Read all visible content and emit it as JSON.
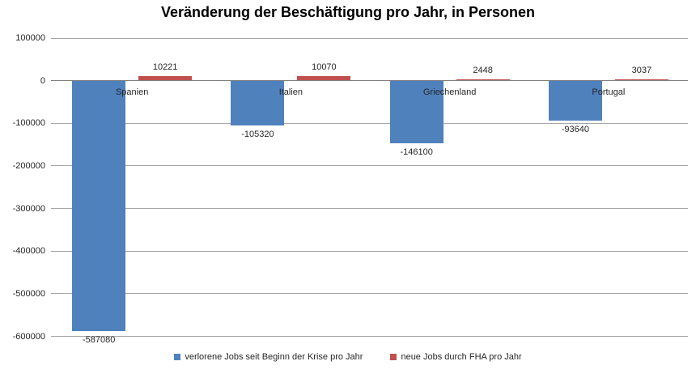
{
  "title": "Veränderung der Beschäftigung pro Jahr, in Personen",
  "colors": {
    "lost_jobs_blue": "#4F81BD",
    "new_jobs_red": "#C0504D",
    "gridline": "#A6A6A6",
    "axis_line": "#808080",
    "label_text": "#262626"
  },
  "legend": [
    {
      "label": "verlorene Jobs seit Beginn der Krise pro Jahr",
      "color": "#4F81BD"
    },
    {
      "label": "neue Jobs durch FHA pro Jahr",
      "color": "#C0504D"
    }
  ],
  "chart_data": {
    "type": "bar",
    "title": "Veränderung der Beschäftigung pro Jahr, in Personen",
    "categories": [
      "Spanien",
      "Italien",
      "Griechenland",
      "Portugal"
    ],
    "series": [
      {
        "name": "verlorene Jobs seit Beginn der Krise pro Jahr",
        "color": "#4F81BD",
        "values": [
          -587080,
          -105320,
          -146100,
          -93640
        ]
      },
      {
        "name": "neue Jobs durch FHA pro Jahr",
        "color": "#C0504D",
        "values": [
          10221,
          10070,
          2448,
          3037
        ]
      }
    ],
    "ylim": [
      -600000,
      100000
    ],
    "ytick_step": 100000,
    "ytick_labels": [
      "100000",
      "0",
      "-100000",
      "-200000",
      "-300000",
      "-400000",
      "-500000",
      "-600000"
    ],
    "grid": true,
    "legend_position": "bottom"
  }
}
